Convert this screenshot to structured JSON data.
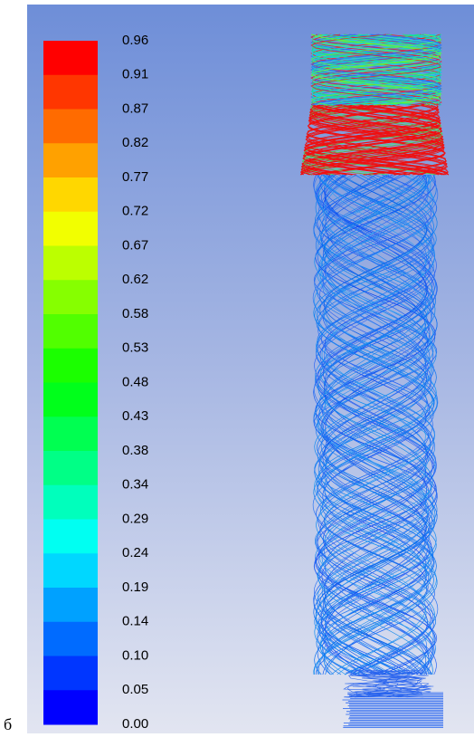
{
  "caption": "б",
  "colorbar": {
    "labels": [
      "0.96",
      "0.91",
      "0.87",
      "0.82",
      "0.77",
      "0.72",
      "0.67",
      "0.62",
      "0.58",
      "0.53",
      "0.48",
      "0.43",
      "0.38",
      "0.34",
      "0.29",
      "0.24",
      "0.19",
      "0.14",
      "0.10",
      "0.05",
      "0.00"
    ]
  }
}
